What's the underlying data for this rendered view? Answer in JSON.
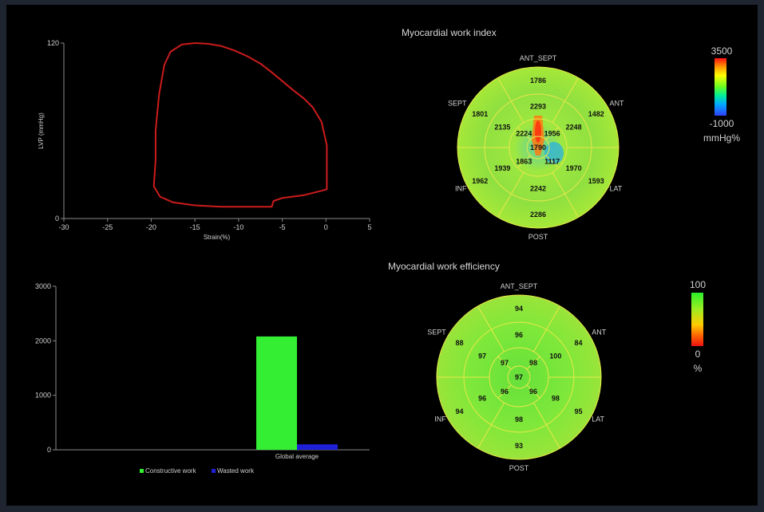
{
  "colors": {
    "background": "#000000",
    "loop": "#cc1c1c",
    "constructive": "#33ee33",
    "wasted": "#1f1fd8",
    "axis": "#8a8a8a",
    "text": "#d0d0d0"
  },
  "chart_data": [
    {
      "id": "pressure_strain_loop",
      "type": "line",
      "title": "",
      "xlabel": "Strain(%)",
      "ylabel": "LVP (mmHg)",
      "xlim": [
        -30,
        5
      ],
      "ylim": [
        0,
        120
      ],
      "xticks": [
        -30,
        -25,
        -20,
        -15,
        -10,
        -5,
        0,
        5
      ],
      "yticks": [
        0,
        120
      ],
      "series": [
        {
          "name": "",
          "x": [
            -6.2,
            -9,
            -12,
            -15,
            -17.5,
            -19,
            -19.7,
            -19.5,
            -19.5,
            -19.1,
            -18.5,
            -17.8,
            -16.5,
            -15,
            -13.5,
            -12,
            -10.5,
            -9,
            -7.5,
            -6.2,
            -5,
            -3.8,
            -2.5,
            -1.5,
            -0.5,
            0.1,
            0.1,
            -0.5,
            -2.5,
            -5,
            -6,
            -6.1,
            -6.2
          ],
          "y": [
            8,
            8,
            8,
            9,
            11,
            15,
            22,
            40,
            60,
            85,
            105,
            114,
            119,
            120,
            119.5,
            118,
            115,
            111,
            106,
            100,
            94,
            88,
            82,
            76,
            66,
            50,
            20,
            19,
            16,
            14,
            12,
            10,
            8
          ]
        }
      ]
    },
    {
      "id": "work_bars",
      "type": "bar",
      "title": "",
      "xlabel": "",
      "ylabel": "",
      "categories": [
        "Global average"
      ],
      "ylim": [
        0,
        3000
      ],
      "yticks": [
        0,
        1000,
        2000,
        3000
      ],
      "legend_position": "bottom",
      "series": [
        {
          "name": "Constructive work",
          "values": [
            2080
          ]
        },
        {
          "name": "Wasted work",
          "values": [
            100
          ]
        }
      ]
    },
    {
      "id": "mwi_bullseye",
      "type": "heatmap",
      "title": "Myocardial work index",
      "labels": [
        "ANT_SEPT",
        "ANT",
        "LAT",
        "POST",
        "INF",
        "SEPT"
      ],
      "scale_max": "3500",
      "scale_min": "-1000",
      "scale_unit": "mmHg%",
      "values": {
        "basal": {
          "ANT_SEPT": 1786,
          "ANT": 1482,
          "LAT": 1593,
          "POST": 2286,
          "INF": 1962,
          "SEPT": 1801
        },
        "mid": {
          "ANT_SEPT": 2293,
          "ANT": 2248,
          "LAT": 1970,
          "POST": 2242,
          "INF": 1939,
          "SEPT": 2135
        },
        "apical": {
          "ANT": 2224,
          "LAT": 1956,
          "POST": 1117,
          "INF": 1863
        },
        "apex": 1790
      }
    },
    {
      "id": "mwe_bullseye",
      "type": "heatmap",
      "title": "Myocardial work efficiency",
      "labels": [
        "ANT_SEPT",
        "ANT",
        "LAT",
        "POST",
        "INF",
        "SEPT"
      ],
      "scale_max": "100",
      "scale_min": "0",
      "scale_unit": "%",
      "values": {
        "basal": {
          "ANT_SEPT": 94,
          "ANT": 84,
          "LAT": 95,
          "POST": 93,
          "INF": 94,
          "SEPT": 88
        },
        "mid": {
          "ANT_SEPT": 96,
          "ANT": 100,
          "LAT": 98,
          "POST": 98,
          "INF": 96,
          "SEPT": 97
        },
        "apical": {
          "ANT": 97,
          "LAT": 98,
          "POST": 96,
          "INF": 96
        },
        "apex": 97
      }
    }
  ]
}
